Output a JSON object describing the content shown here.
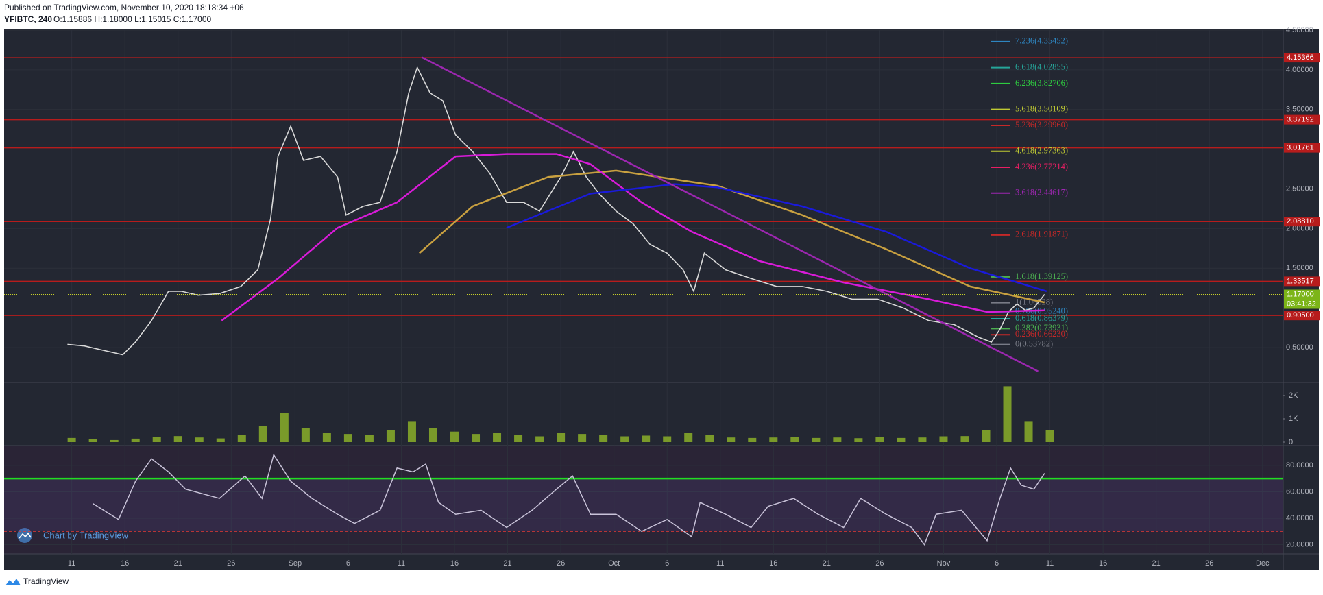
{
  "header": {
    "published": "Published on TradingView.com, November 10, 2020 18:18:34 +06",
    "symbol": "YFIBTC, 240",
    "ohlc": "O:1.15886 H:1.18000 L:1.15015 C:1.17000"
  },
  "footer": {
    "watermark": "Chart by TradingView",
    "brand": "TradingView"
  },
  "chart_data": [
    {
      "type": "line",
      "ylim": [
        0.06,
        4.5
      ],
      "yticks": [
        {
          "value": 0.5,
          "label": "0.50000"
        },
        {
          "value": 1.5,
          "label": "1.50000"
        },
        {
          "value": 2,
          "label": "2.00000"
        },
        {
          "value": 2.5,
          "label": "2.50000"
        },
        {
          "value": 3.5,
          "label": "3.50000"
        },
        {
          "value": 4,
          "label": "4.00000"
        },
        {
          "value": 4.5,
          "label": "4.50000"
        }
      ],
      "series": [
        {
          "color": "#d9d9d9",
          "x": [
            -0.4,
            1.2,
            2.8,
            4.8,
            6,
            7.5,
            9.1,
            10.3,
            11.9,
            13.9,
            15.9,
            17.5,
            18.7,
            19.4,
            20.6,
            21.8,
            23.4,
            25,
            25.8,
            27.4,
            29,
            30.6,
            31.7,
            32.5,
            33.7,
            34.9,
            36.1,
            37.7,
            39.3,
            40.9,
            42.5,
            44,
            46,
            47.2,
            48.4,
            49.6,
            51.2,
            52.8,
            54.4,
            56,
            57.5,
            58.5,
            59.5,
            61.5,
            63.9,
            66.3,
            68.7,
            71,
            73.4,
            75.8,
            78.2,
            80.6,
            83,
            85.3,
            86.5,
            87.3,
            88.1,
            88.9,
            89.7,
            90.5,
            91.5
          ],
          "values": [
            0.54,
            0.52,
            0.47,
            0.41,
            0.57,
            0.84,
            1.21,
            1.21,
            1.16,
            1.18,
            1.27,
            1.48,
            2.12,
            2.91,
            3.29,
            2.86,
            2.91,
            2.65,
            2.17,
            2.28,
            2.33,
            2.97,
            3.71,
            4.03,
            3.71,
            3.61,
            3.18,
            2.97,
            2.7,
            2.33,
            2.33,
            2.22,
            2.65,
            2.97,
            2.65,
            2.44,
            2.22,
            2.06,
            1.8,
            1.69,
            1.48,
            1.21,
            1.69,
            1.48,
            1.37,
            1.27,
            1.27,
            1.21,
            1.11,
            1.11,
            1.0,
            0.84,
            0.79,
            0.63,
            0.57,
            0.73,
            0.95,
            1.05,
            0.97,
            1.0,
            1.17
          ]
        },
        {
          "color": "#c8a040",
          "x": [
            32.7,
            37.7,
            44.8,
            51.2,
            60.7,
            68.7,
            76.6,
            84.5,
            91.5
          ],
          "values": [
            1.69,
            2.28,
            2.65,
            2.73,
            2.54,
            2.17,
            1.74,
            1.27,
            1.07
          ]
        },
        {
          "color": "#d81bd8",
          "x": [
            14.1,
            19.4,
            25,
            30.6,
            36.1,
            40.9,
            45.6,
            48.8,
            53.6,
            58.3,
            64.7,
            72.6,
            80.6,
            86.1,
            91.5
          ],
          "values": [
            0.84,
            1.37,
            2.01,
            2.33,
            2.91,
            2.94,
            2.94,
            2.81,
            2.33,
            1.96,
            1.59,
            1.32,
            1.11,
            0.95,
            0.97
          ]
        },
        {
          "color": "#1a1adb",
          "x": [
            40.9,
            48.8,
            56.7,
            60.7,
            68.7,
            76.6,
            84.5,
            91.7
          ],
          "values": [
            2.01,
            2.44,
            2.56,
            2.52,
            2.28,
            1.96,
            1.5,
            1.21
          ]
        },
        {
          "color": "#9c27b0",
          "x": [
            32.9,
            90.9
          ],
          "values": [
            4.16,
            0.2
          ]
        }
      ],
      "level_color": "#b71c1c",
      "levels": [
        4.15366,
        3.37192,
        3.01761,
        {
          "value": 2.0881,
          "label": "2.08810"
        },
        1.33517,
        {
          "value": 0.905,
          "label": "0.90500"
        }
      ],
      "last": {
        "value": 1.17,
        "label": "1.17000",
        "color": "#7cb518"
      },
      "countdown": "03:41:32",
      "fib_levels": [
        {
          "label": "7.236(4.35452)",
          "value": 4.35452,
          "color": "#2e86c1"
        },
        {
          "label": "6.618(4.02855)",
          "value": 4.02855,
          "color": "#26a69a"
        },
        {
          "label": "6.236(3.82706)",
          "value": 3.82706,
          "color": "#2ecc40"
        },
        {
          "label": "5.618(3.50109)",
          "value": 3.50109,
          "color": "#c0ca33"
        },
        {
          "label": "5.236(3.29960)",
          "value": 3.2996,
          "color": "#c62828"
        },
        {
          "label": "4.618(2.97363)",
          "value": 2.97363,
          "color": "#c0ca33"
        },
        {
          "label": "4.236(2.77214)",
          "value": 2.77214,
          "color": "#e91e63"
        },
        {
          "label": "3.618(2.44617)",
          "value": 2.44617,
          "color": "#9c27b0"
        },
        {
          "label": "2.618(1.91871)",
          "value": 1.91871,
          "color": "#c62828"
        },
        {
          "label": "1.618(1.39125)",
          "value": 1.39125,
          "color": "#4caf50"
        },
        {
          "label": "1(1.06528)",
          "value": 1.06528,
          "color": "#787b86"
        },
        {
          "label": "0.786(0.95240)",
          "value": 0.9524,
          "color": "#2e86c1"
        },
        {
          "label": "0.618(0.86379)",
          "value": 0.86379,
          "color": "#26a69a"
        },
        {
          "label": "0.382(0.73931)",
          "value": 0.73931,
          "color": "#4caf50"
        },
        {
          "label": "0.236(0.66230)",
          "value": 0.6623,
          "color": "#c62828"
        },
        {
          "label": "0(0.53782)",
          "value": 0.53782,
          "color": "#787b86"
        }
      ]
    },
    {
      "type": "bar",
      "color": "#7a9a2a",
      "ylim": [
        0,
        2500
      ],
      "yticks": [
        0,
        {
          "value": 1000,
          "label": "1K"
        },
        {
          "value": 2000,
          "label": "2K"
        }
      ],
      "x": [
        0,
        2,
        4,
        6,
        8,
        10,
        12,
        14,
        16,
        18,
        20,
        22,
        24,
        26,
        28,
        30,
        32,
        34,
        36,
        38,
        40,
        42,
        44,
        46,
        48,
        50,
        52,
        54,
        56,
        58,
        60,
        62,
        64,
        66,
        68,
        70,
        72,
        74,
        76,
        78,
        80,
        82,
        84,
        86,
        88,
        90,
        92
      ],
      "values": [
        180,
        120,
        90,
        150,
        220,
        260,
        200,
        160,
        300,
        700,
        1250,
        600,
        400,
        350,
        300,
        500,
        900,
        600,
        450,
        350,
        400,
        300,
        250,
        400,
        350,
        300,
        250,
        280,
        250,
        400,
        300,
        200,
        180,
        200,
        220,
        180,
        200,
        170,
        220,
        180,
        200,
        250,
        260,
        500,
        2400,
        900,
        500
      ]
    },
    {
      "type": "line",
      "color": "#c9c3d9",
      "ylim": [
        13,
        95
      ],
      "yticks": [
        {
          "value": 20,
          "label": "20.0000"
        },
        {
          "value": 40,
          "label": "40.0000"
        },
        {
          "value": 60,
          "label": "60.0000"
        },
        {
          "value": 80,
          "label": "80.0000"
        }
      ],
      "upper": 70,
      "upper_color": "#22dd22",
      "lower": 30,
      "lower_color": "#e53935",
      "x": [
        2.0,
        4.4,
        6.0,
        7.5,
        9.1,
        10.7,
        13.9,
        16.3,
        17.9,
        19.0,
        20.6,
        22.6,
        25.0,
        26.6,
        29.0,
        30.6,
        32.1,
        33.3,
        34.5,
        36.1,
        38.5,
        40.9,
        43.3,
        45.6,
        47.1,
        48.8,
        51.2,
        53.6,
        56.0,
        58.3,
        59.1,
        61.5,
        63.9,
        65.5,
        67.9,
        70.2,
        72.6,
        74.2,
        76.6,
        79.0,
        80.2,
        81.3,
        83.7,
        86.1,
        87.3,
        88.3,
        89.3,
        90.5,
        91.5
      ],
      "values": [
        51,
        39,
        68,
        85,
        75,
        62,
        55,
        72,
        55,
        88,
        68,
        55,
        43,
        36,
        46,
        78,
        75,
        81,
        52,
        43,
        46,
        33,
        46,
        62,
        72,
        43,
        43,
        30,
        39,
        26,
        52,
        43,
        33,
        49,
        55,
        43,
        33,
        55,
        43,
        33,
        20,
        43,
        46,
        23,
        55,
        78,
        65,
        62,
        74
      ],
      "xlim": [
        -6.36,
        113.95
      ],
      "xticks": [
        {
          "value": 0,
          "label": "11"
        },
        {
          "value": 5,
          "label": "16"
        },
        {
          "value": 10,
          "label": "21"
        },
        {
          "value": 15,
          "label": "26"
        },
        {
          "value": 21,
          "label": "Sep"
        },
        {
          "value": 26,
          "label": "6"
        },
        {
          "value": 31,
          "label": "11"
        },
        {
          "value": 36,
          "label": "16"
        },
        {
          "value": 41,
          "label": "21"
        },
        {
          "value": 46,
          "label": "26"
        },
        {
          "value": 51,
          "label": "Oct"
        },
        {
          "value": 56,
          "label": "6"
        },
        {
          "value": 61,
          "label": "11"
        },
        {
          "value": 66,
          "label": "16"
        },
        {
          "value": 71,
          "label": "21"
        },
        {
          "value": 76,
          "label": "26"
        },
        {
          "value": 82,
          "label": "Nov"
        },
        {
          "value": 87,
          "label": "6"
        },
        {
          "value": 92,
          "label": "11"
        },
        {
          "value": 97,
          "label": "16"
        },
        {
          "value": 102,
          "label": "21"
        },
        {
          "value": 107,
          "label": "26"
        },
        {
          "value": 112,
          "label": "Dec"
        }
      ]
    }
  ]
}
